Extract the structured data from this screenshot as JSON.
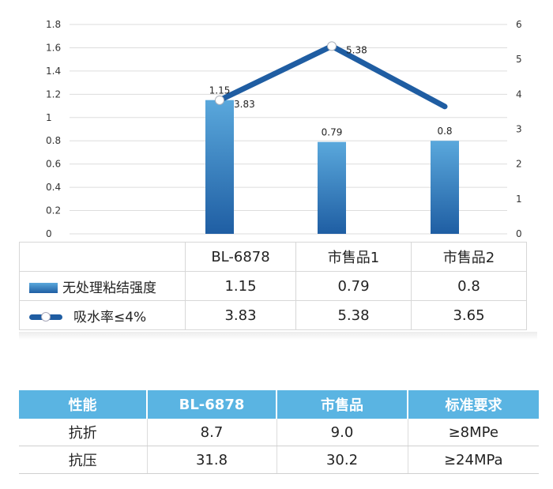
{
  "chart_data": {
    "type": "bar",
    "categories": [
      "BL-6878",
      "市售品1",
      "市售品2"
    ],
    "series": [
      {
        "name": "无处理粘结强度",
        "type": "bar",
        "axis": "left",
        "values": [
          1.15,
          0.79,
          0.8
        ]
      },
      {
        "name": "吸水率≤4%",
        "type": "line",
        "axis": "right",
        "values": [
          3.83,
          5.38,
          3.65
        ]
      }
    ],
    "data_labels": {
      "bar": [
        "1.15",
        "0.79",
        "0.8"
      ],
      "line": [
        "3.83",
        "5.38"
      ]
    },
    "y_left": {
      "lim": [
        0,
        1.8
      ],
      "ticks": [
        "0",
        "0.2",
        "0.4",
        "0.6",
        "0.8",
        "1",
        "1.2",
        "1.4",
        "1.6",
        "1.8"
      ]
    },
    "y_right": {
      "lim": [
        0,
        6
      ],
      "ticks": [
        "0",
        "1",
        "2",
        "3",
        "4",
        "5",
        "6"
      ]
    },
    "grid": true,
    "legend": "data-table-bottom",
    "colors": {
      "bar_top": "#5aa8dc",
      "bar_bottom": "#1f5ea3",
      "line": "#1f5da2",
      "grid": "#dddddd"
    }
  },
  "data_table": {
    "header": [
      "",
      "BL-6878",
      "市售品1",
      "市售品2"
    ],
    "rows": [
      {
        "legend": "无处理粘结强度",
        "values": [
          "1.15",
          "0.79",
          "0.8"
        ]
      },
      {
        "legend": "吸水率≤4%",
        "values": [
          "3.83",
          "5.38",
          "3.65"
        ]
      }
    ]
  },
  "properties_table": {
    "header": [
      "性能",
      "BL-6878",
      "市售品",
      "标准要求"
    ],
    "rows": [
      [
        "抗折",
        "8.7",
        "9.0",
        "≥8MPe"
      ],
      [
        "抗压",
        "31.8",
        "30.2",
        "≥24MPa"
      ]
    ],
    "header_color": "#5ab4e2"
  }
}
